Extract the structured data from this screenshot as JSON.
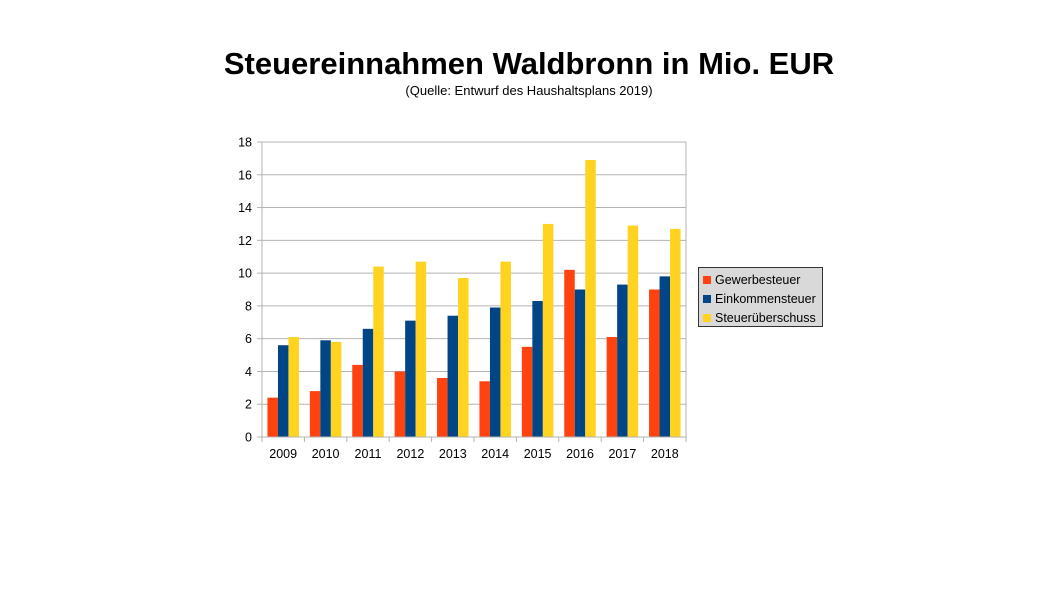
{
  "chart_data": {
    "type": "bar",
    "title": "Steuereinnahmen Waldbronn in Mio. EUR",
    "subtitle": "(Quelle: Entwurf des Haushaltsplans 2019)",
    "categories": [
      "2009",
      "2010",
      "2011",
      "2012",
      "2013",
      "2014",
      "2015",
      "2016",
      "2017",
      "2018"
    ],
    "series": [
      {
        "name": "Gewerbesteuer",
        "color": "#ff420e",
        "values": [
          2.4,
          2.8,
          4.4,
          4.0,
          3.6,
          3.4,
          5.5,
          10.2,
          6.1,
          9.0
        ]
      },
      {
        "name": "Einkommensteuer",
        "color": "#004586",
        "values": [
          5.6,
          5.9,
          6.6,
          7.1,
          7.4,
          7.9,
          8.3,
          9.0,
          9.3,
          9.8
        ]
      },
      {
        "name": "Steuerüberschuss",
        "color": "#ffd320",
        "values": [
          6.1,
          5.8,
          10.4,
          10.7,
          9.7,
          10.7,
          13.0,
          16.9,
          12.9,
          12.7
        ]
      }
    ],
    "ylim": [
      0,
      18
    ],
    "yticks": [
      0,
      2,
      4,
      6,
      8,
      10,
      12,
      14,
      16,
      18
    ],
    "grid": true,
    "legend_position": "right"
  }
}
